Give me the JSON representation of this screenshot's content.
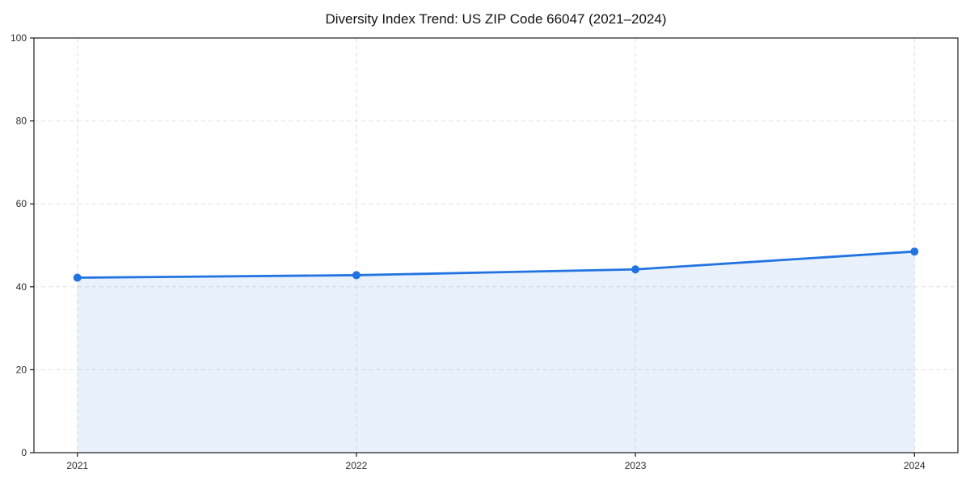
{
  "title": "Diversity Index Trend: US ZIP Code 66047 (2021–2024)",
  "colors": {
    "line": "#2273e2",
    "marker": "#2273e2",
    "fill": "rgba(34,115,226,0.10)",
    "grid": "#e0e0e0",
    "axis": "#1a1a1a",
    "tick_label": "#2b2b2b",
    "title": "#111111",
    "background": "#ffffff"
  },
  "chart_data": {
    "type": "line",
    "title": "Diversity Index Trend: US ZIP Code 66047 (2021–2024)",
    "x": [
      2021,
      2022,
      2023,
      2024
    ],
    "series": [
      {
        "name": "Diversity Index",
        "values": [
          42.2,
          42.8,
          44.2,
          48.5
        ]
      }
    ],
    "xlabel": "",
    "ylabel": "",
    "ylim": [
      0,
      100
    ],
    "yticks": [
      0,
      20,
      40,
      60,
      80,
      100
    ],
    "xticks": [
      "2021",
      "2022",
      "2023",
      "2024"
    ],
    "grid": true,
    "grid_style": "dashed",
    "legend_position": "none",
    "area_fill": true,
    "markers": true
  }
}
